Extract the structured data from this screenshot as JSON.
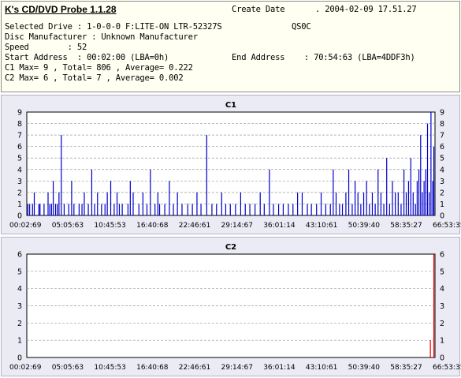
{
  "app": {
    "title": "K's CD/DVD Probe 1.1.28"
  },
  "info": {
    "create_date_label": "Create Date",
    "create_date_value": ". 2004-02-09 17.51.27",
    "selected_drive": "Selected Drive : 1-0-0-0 F:LITE-ON LTR-52327S",
    "drive_firmware": "QS0C",
    "disc_manufacturer": "Disc Manufacturer : Unknown Manufacturer",
    "speed": "Speed        : 52",
    "start_address": "Start Address  : 00:02:00 (LBA=0h)",
    "end_address": "End Address    : 70:54:63 (LBA=4DDF3h)",
    "c1_summary": "C1 Max= 9 , Total= 806 , Average= 0.222",
    "c2_summary": "C2 Max= 6 , Total= 7 , Average= 0.002"
  },
  "colors": {
    "c1_bar": "#0000cc",
    "c2_bar": "#ee0000",
    "plot_bg": "#ffffff",
    "panel_bg": "#ebebf5",
    "gridline": "#9a9a9a"
  },
  "chart_data": [
    {
      "type": "bar",
      "title": "C1",
      "ylim": [
        0,
        9
      ],
      "yticks": [
        0,
        1,
        2,
        3,
        4,
        5,
        6,
        7,
        8,
        9
      ],
      "xticks": [
        "00:02:69",
        "05:05:63",
        "10:45:53",
        "16:40:68",
        "22:46:61",
        "29:14:67",
        "36:01:14",
        "43:10:61",
        "50:39:40",
        "58:35:27",
        "66:53:35"
      ],
      "grid": "horizontal dashed",
      "series": [
        {
          "x": [
            0.2,
            0.5,
            1.0,
            1.3,
            2.1,
            2.3,
            3.0,
            3.7,
            4.0,
            4.3,
            4.6,
            5.0,
            5.3,
            5.6,
            6.0,
            6.5,
            7.3,
            7.8,
            8.2,
            9.1,
            9.6,
            10.0,
            10.7,
            11.3,
            11.8,
            12.3,
            13.0,
            13.6,
            14.0,
            14.6,
            15.2,
            15.7,
            16.1,
            16.6,
            17.6,
            18.0,
            18.5,
            19.5,
            20.2,
            20.9,
            21.5,
            22.3,
            22.8,
            23.1,
            24.0,
            24.8,
            25.5,
            26.2,
            27.0,
            28.0,
            28.8,
            29.6,
            30.3,
            31.3,
            32.2,
            33.0,
            33.9,
            34.6,
            35.4,
            36.3,
            37.2,
            38.0,
            38.8,
            39.7,
            40.6,
            41.3,
            42.2,
            42.9,
            43.8,
            44.6,
            45.5,
            46.3,
            47.1,
            47.9,
            48.8,
            49.5,
            50.4,
            51.2,
            52.0,
            52.8,
            53.3,
            53.8,
            54.4,
            54.9,
            55.5,
            56.0,
            56.6,
            57.1,
            57.6,
            58.1,
            58.6,
            59.1,
            59.6,
            60.1,
            60.6,
            61.1,
            61.6,
            62.1,
            62.6,
            63.1,
            63.6,
            64.1,
            64.6,
            65.1,
            65.6,
            66.0,
            66.4,
            66.8,
            67.2,
            67.6,
            67.9,
            68.2,
            68.5,
            68.8,
            69.1,
            69.4,
            69.7,
            70.0,
            70.3,
            70.6,
            70.8
          ],
          "values": [
            1,
            1,
            1,
            2,
            1,
            1,
            1,
            2,
            1,
            1,
            3,
            1,
            1,
            2,
            7,
            1,
            1,
            3,
            1,
            1,
            1,
            2,
            1,
            4,
            1,
            2,
            1,
            1,
            2,
            3,
            1,
            2,
            1,
            1,
            1,
            3,
            2,
            1,
            2,
            1,
            4,
            1,
            2,
            1,
            1,
            3,
            1,
            2,
            1,
            1,
            1,
            2,
            1,
            7,
            1,
            1,
            2,
            1,
            1,
            1,
            2,
            1,
            1,
            1,
            2,
            1,
            4,
            1,
            1,
            1,
            1,
            1,
            2,
            2,
            1,
            1,
            1,
            2,
            1,
            1,
            4,
            2,
            1,
            1,
            2,
            4,
            1,
            3,
            2,
            1,
            2,
            3,
            1,
            2,
            1,
            4,
            2,
            1,
            5,
            1,
            3,
            2,
            2,
            1,
            4,
            2,
            3,
            5,
            2,
            1,
            3,
            4,
            7,
            2,
            3,
            4,
            8,
            2,
            9,
            3,
            6
          ]
        }
      ]
    },
    {
      "type": "bar",
      "title": "C2",
      "ylim": [
        0,
        6
      ],
      "yticks": [
        0,
        1,
        2,
        3,
        4,
        5,
        6
      ],
      "xticks": [
        "00:02:69",
        "05:05:63",
        "10:45:53",
        "16:40:68",
        "22:46:61",
        "29:14:67",
        "36:01:14",
        "43:10:61",
        "50:39:40",
        "58:35:27",
        "66:53:35"
      ],
      "grid": "horizontal dashed",
      "series": [
        {
          "x": [
            70.2,
            70.8
          ],
          "values": [
            1,
            6
          ]
        }
      ]
    }
  ]
}
